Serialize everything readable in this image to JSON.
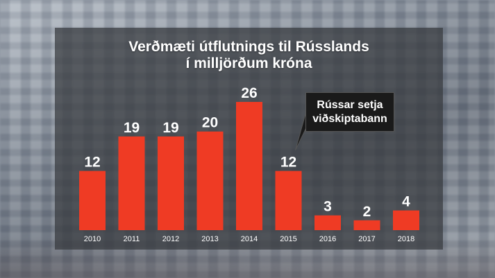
{
  "chart_data": {
    "type": "bar",
    "title": "Verðmæti útflutnings til Rússlands",
    "subtitle": "í milljörðum króna",
    "categories": [
      "2010",
      "2011",
      "2012",
      "2013",
      "2014",
      "2015",
      "2016",
      "2017",
      "2018"
    ],
    "values": [
      12,
      19,
      19,
      20,
      26,
      12,
      3,
      2,
      4
    ],
    "xlabel": "",
    "ylabel": "",
    "ylim": [
      0,
      26
    ],
    "grid": false,
    "bar_color": "#ef3b24",
    "annotation": {
      "category": "2015",
      "line1": "Rússar setja",
      "line2": "viðskiptabann"
    }
  }
}
